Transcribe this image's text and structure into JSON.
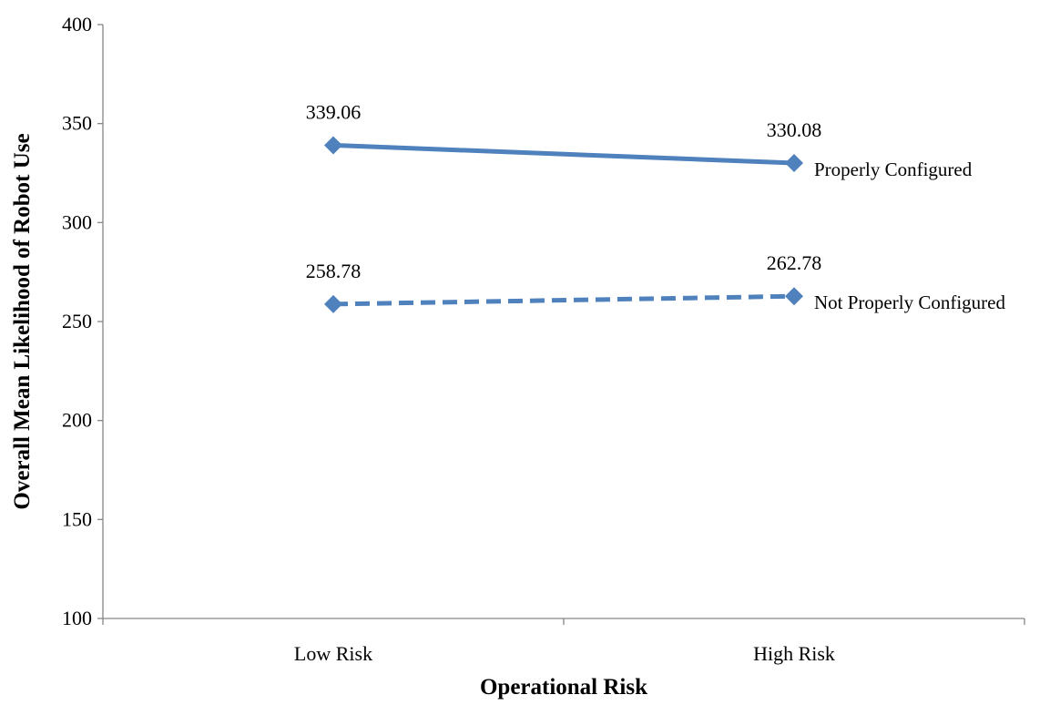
{
  "chart_data": {
    "type": "line",
    "title": "",
    "xlabel": "Operational Risk",
    "ylabel": "Overall Mean Likelihood of Robot Use",
    "categories": [
      "Low Risk",
      "High Risk"
    ],
    "ylim": [
      100,
      400
    ],
    "yticks": [
      "100",
      "150",
      "200",
      "250",
      "300",
      "350",
      "400"
    ],
    "grid": false,
    "legend": "none (series labelled at right end of lines)",
    "series": [
      {
        "name": "Properly Configured",
        "values": [
          339.06,
          330.08
        ],
        "labels": [
          "339.06",
          "330.08"
        ],
        "line_style": "solid",
        "marker": "diamond",
        "color": "#4F81BD"
      },
      {
        "name": "Not Properly Configured",
        "values": [
          258.78,
          262.78
        ],
        "labels": [
          "258.78",
          "262.78"
        ],
        "line_style": "dashed",
        "marker": "diamond",
        "color": "#4F81BD"
      }
    ]
  }
}
